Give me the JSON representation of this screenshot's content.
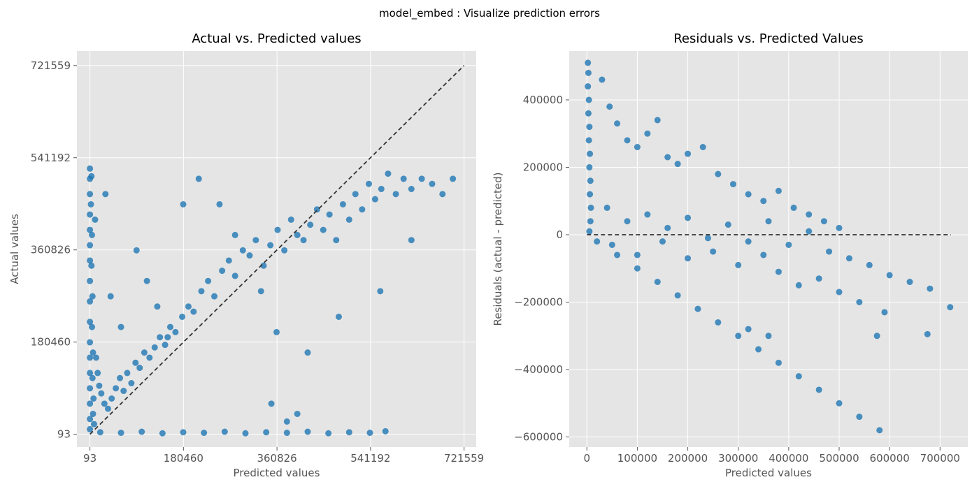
{
  "figure": {
    "suptitle": "model_embed : Visualize prediction errors",
    "background": "#ffffff",
    "axes_bg": "#e5e5e5",
    "grid_color": "#ffffff",
    "point_color": "#1f77b4",
    "ref_line_color": "#333333"
  },
  "chart_data": [
    {
      "type": "scatter",
      "title": "Actual vs. Predicted values",
      "xlabel": "Predicted values",
      "ylabel": "Actual values",
      "xlim": [
        -25000,
        745000
      ],
      "ylim": [
        -25000,
        750000
      ],
      "xticks": [
        93,
        180460,
        360826,
        541192,
        721559
      ],
      "xtick_labels": [
        "93",
        "180460",
        "360826",
        "541192",
        "721559"
      ],
      "yticks": [
        93,
        180460,
        360826,
        541192,
        721559
      ],
      "ytick_labels": [
        "93",
        "180460",
        "360826",
        "541192",
        "721559"
      ],
      "grid": true,
      "reference_line": {
        "from": [
          93,
          93
        ],
        "to": [
          721559,
          721559
        ],
        "style": "dashed"
      },
      "points": [
        [
          93,
          520000
        ],
        [
          93,
          500000
        ],
        [
          93,
          470000
        ],
        [
          93,
          430000
        ],
        [
          93,
          400000
        ],
        [
          93,
          370000
        ],
        [
          93,
          340000
        ],
        [
          93,
          300000
        ],
        [
          93,
          260000
        ],
        [
          93,
          220000
        ],
        [
          93,
          180000
        ],
        [
          93,
          150000
        ],
        [
          93,
          120000
        ],
        [
          93,
          90000
        ],
        [
          93,
          60000
        ],
        [
          93,
          30000
        ],
        [
          93,
          10000
        ],
        [
          3000,
          505000
        ],
        [
          2000,
          450000
        ],
        [
          4000,
          390000
        ],
        [
          3000,
          330000
        ],
        [
          5000,
          270000
        ],
        [
          4000,
          210000
        ],
        [
          6000,
          160000
        ],
        [
          5000,
          110000
        ],
        [
          7000,
          70000
        ],
        [
          6000,
          40000
        ],
        [
          8000,
          20000
        ],
        [
          12000,
          150000
        ],
        [
          15000,
          120000
        ],
        [
          18000,
          95000
        ],
        [
          22000,
          80000
        ],
        [
          28000,
          60000
        ],
        [
          35000,
          50000
        ],
        [
          42000,
          70000
        ],
        [
          50000,
          90000
        ],
        [
          58000,
          110000
        ],
        [
          65000,
          85000
        ],
        [
          72000,
          120000
        ],
        [
          80000,
          100000
        ],
        [
          88000,
          140000
        ],
        [
          96000,
          130000
        ],
        [
          105000,
          160000
        ],
        [
          115000,
          150000
        ],
        [
          125000,
          170000
        ],
        [
          135000,
          190000
        ],
        [
          145000,
          175000
        ],
        [
          155000,
          210000
        ],
        [
          165000,
          200000
        ],
        [
          178000,
          230000
        ],
        [
          190000,
          250000
        ],
        [
          200000,
          240000
        ],
        [
          215000,
          280000
        ],
        [
          228000,
          300000
        ],
        [
          240000,
          270000
        ],
        [
          255000,
          320000
        ],
        [
          268000,
          340000
        ],
        [
          280000,
          310000
        ],
        [
          295000,
          360000
        ],
        [
          308000,
          350000
        ],
        [
          320000,
          380000
        ],
        [
          335000,
          330000
        ],
        [
          348000,
          370000
        ],
        [
          362000,
          400000
        ],
        [
          375000,
          360000
        ],
        [
          388000,
          420000
        ],
        [
          400000,
          390000
        ],
        [
          412000,
          380000
        ],
        [
          425000,
          410000
        ],
        [
          438000,
          440000
        ],
        [
          450000,
          400000
        ],
        [
          462000,
          430000
        ],
        [
          475000,
          380000
        ],
        [
          488000,
          450000
        ],
        [
          500000,
          420000
        ],
        [
          512000,
          470000
        ],
        [
          525000,
          440000
        ],
        [
          538000,
          490000
        ],
        [
          550000,
          460000
        ],
        [
          562000,
          480000
        ],
        [
          575000,
          510000
        ],
        [
          590000,
          470000
        ],
        [
          605000,
          500000
        ],
        [
          620000,
          480000
        ],
        [
          640000,
          500000
        ],
        [
          660000,
          490000
        ],
        [
          680000,
          470000
        ],
        [
          700000,
          500000
        ],
        [
          10000,
          420000
        ],
        [
          30000,
          470000
        ],
        [
          40000,
          270000
        ],
        [
          60000,
          210000
        ],
        [
          90000,
          360000
        ],
        [
          110000,
          300000
        ],
        [
          130000,
          250000
        ],
        [
          150000,
          190000
        ],
        [
          180000,
          450000
        ],
        [
          210000,
          500000
        ],
        [
          250000,
          450000
        ],
        [
          280000,
          390000
        ],
        [
          330000,
          280000
        ],
        [
          360000,
          200000
        ],
        [
          420000,
          160000
        ],
        [
          480000,
          230000
        ],
        [
          560000,
          280000
        ],
        [
          620000,
          380000
        ],
        [
          20000,
          4000
        ],
        [
          60000,
          3000
        ],
        [
          100000,
          5000
        ],
        [
          140000,
          2000
        ],
        [
          180000,
          4000
        ],
        [
          220000,
          3000
        ],
        [
          260000,
          5000
        ],
        [
          300000,
          2000
        ],
        [
          340000,
          4000
        ],
        [
          380000,
          3000
        ],
        [
          420000,
          5000
        ],
        [
          460000,
          2000
        ],
        [
          500000,
          4000
        ],
        [
          540000,
          3000
        ],
        [
          570000,
          6000
        ],
        [
          400000,
          40000
        ],
        [
          350000,
          60000
        ],
        [
          380000,
          25000
        ]
      ]
    },
    {
      "type": "scatter",
      "title": "Residuals vs. Predicted Values",
      "xlabel": "Predicted values",
      "ylabel": "Residuals (actual - predicted)",
      "xlim": [
        -35000,
        755000
      ],
      "ylim": [
        -630000,
        545000
      ],
      "xticks": [
        0,
        100000,
        200000,
        300000,
        400000,
        500000,
        600000,
        700000
      ],
      "xtick_labels": [
        "0",
        "100000",
        "200000",
        "300000",
        "400000",
        "500000",
        "600000",
        "700000"
      ],
      "yticks": [
        -600000,
        -400000,
        -200000,
        0,
        200000,
        400000
      ],
      "ytick_labels": [
        "−600000",
        "−400000",
        "−200000",
        "0",
        "200000",
        "400000"
      ],
      "grid": true,
      "reference_line": {
        "from": [
          0,
          0
        ],
        "to": [
          721559,
          0
        ],
        "style": "dashed"
      },
      "points": [
        [
          2000,
          510000
        ],
        [
          3000,
          480000
        ],
        [
          2000,
          440000
        ],
        [
          4000,
          400000
        ],
        [
          3000,
          360000
        ],
        [
          5000,
          320000
        ],
        [
          4000,
          280000
        ],
        [
          6000,
          240000
        ],
        [
          5000,
          200000
        ],
        [
          7000,
          160000
        ],
        [
          6000,
          120000
        ],
        [
          8000,
          80000
        ],
        [
          7000,
          40000
        ],
        [
          5000,
          10000
        ],
        [
          30000,
          460000
        ],
        [
          45000,
          380000
        ],
        [
          60000,
          330000
        ],
        [
          80000,
          280000
        ],
        [
          100000,
          260000
        ],
        [
          120000,
          300000
        ],
        [
          140000,
          340000
        ],
        [
          160000,
          230000
        ],
        [
          180000,
          210000
        ],
        [
          200000,
          240000
        ],
        [
          230000,
          260000
        ],
        [
          260000,
          180000
        ],
        [
          290000,
          150000
        ],
        [
          320000,
          120000
        ],
        [
          350000,
          100000
        ],
        [
          380000,
          130000
        ],
        [
          410000,
          80000
        ],
        [
          440000,
          60000
        ],
        [
          470000,
          40000
        ],
        [
          500000,
          20000
        ],
        [
          40000,
          80000
        ],
        [
          80000,
          40000
        ],
        [
          120000,
          60000
        ],
        [
          160000,
          20000
        ],
        [
          200000,
          50000
        ],
        [
          240000,
          -10000
        ],
        [
          280000,
          30000
        ],
        [
          320000,
          -20000
        ],
        [
          360000,
          40000
        ],
        [
          400000,
          -30000
        ],
        [
          440000,
          10000
        ],
        [
          480000,
          -50000
        ],
        [
          520000,
          -70000
        ],
        [
          560000,
          -90000
        ],
        [
          600000,
          -120000
        ],
        [
          640000,
          -140000
        ],
        [
          680000,
          -160000
        ],
        [
          720000,
          -215000
        ],
        [
          50000,
          -30000
        ],
        [
          100000,
          -60000
        ],
        [
          150000,
          -20000
        ],
        [
          200000,
          -70000
        ],
        [
          250000,
          -50000
        ],
        [
          300000,
          -90000
        ],
        [
          350000,
          -60000
        ],
        [
          380000,
          -110000
        ],
        [
          420000,
          -150000
        ],
        [
          460000,
          -130000
        ],
        [
          500000,
          -170000
        ],
        [
          540000,
          -200000
        ],
        [
          575000,
          -300000
        ],
        [
          590000,
          -230000
        ],
        [
          675000,
          -295000
        ],
        [
          20000,
          -20000
        ],
        [
          60000,
          -60000
        ],
        [
          100000,
          -100000
        ],
        [
          140000,
          -140000
        ],
        [
          180000,
          -180000
        ],
        [
          220000,
          -220000
        ],
        [
          260000,
          -260000
        ],
        [
          300000,
          -300000
        ],
        [
          340000,
          -340000
        ],
        [
          380000,
          -380000
        ],
        [
          420000,
          -420000
        ],
        [
          460000,
          -460000
        ],
        [
          500000,
          -500000
        ],
        [
          540000,
          -540000
        ],
        [
          580000,
          -580000
        ],
        [
          320000,
          -280000
        ],
        [
          360000,
          -300000
        ]
      ]
    }
  ]
}
